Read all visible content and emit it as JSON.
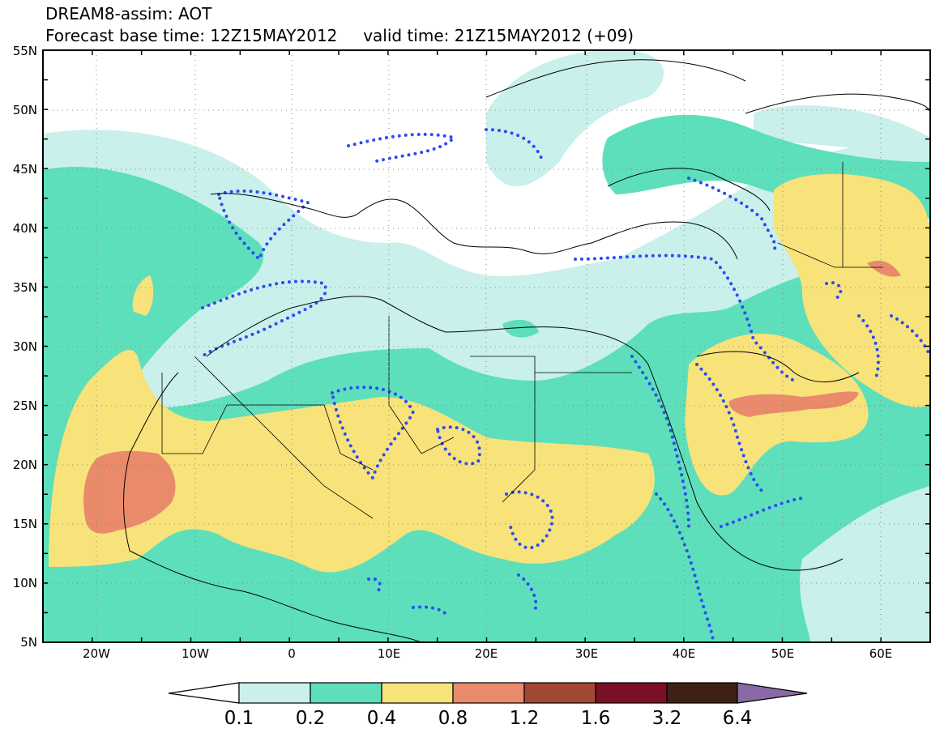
{
  "title": {
    "line1": "DREAM8-assim: AOT",
    "line2": "Forecast base time: 12Z15MAY2012     valid time: 21Z15MAY2012 (+09)"
  },
  "map": {
    "lon_range": [
      -25,
      65
    ],
    "lat_range": [
      5,
      55
    ],
    "lon_ticks": [
      {
        "value": -20,
        "label": "20W"
      },
      {
        "value": -10,
        "label": "10W"
      },
      {
        "value": 0,
        "label": "0"
      },
      {
        "value": 10,
        "label": "10E"
      },
      {
        "value": 20,
        "label": "20E"
      },
      {
        "value": 30,
        "label": "30E"
      },
      {
        "value": 40,
        "label": "40E"
      },
      {
        "value": 50,
        "label": "50E"
      },
      {
        "value": 60,
        "label": "60E"
      }
    ],
    "lat_ticks": [
      {
        "value": 55,
        "label": "55N"
      },
      {
        "value": 50,
        "label": "50N"
      },
      {
        "value": 45,
        "label": "45N"
      },
      {
        "value": 40,
        "label": "40N"
      },
      {
        "value": 35,
        "label": "35N"
      },
      {
        "value": 30,
        "label": "30N"
      },
      {
        "value": 25,
        "label": "25N"
      },
      {
        "value": 20,
        "label": "20N"
      },
      {
        "value": 15,
        "label": "15N"
      },
      {
        "value": 10,
        "label": "10N"
      },
      {
        "value": 5,
        "label": "5N"
      }
    ],
    "grid": "dotted",
    "overlay": "dotted blue contour"
  },
  "colorbar": {
    "labels": [
      "0.1",
      "0.2",
      "0.4",
      "0.8",
      "1.2",
      "1.6",
      "3.2",
      "6.4"
    ],
    "colors": [
      "#ffffff",
      "#c9f0eb",
      "#5ddfbb",
      "#f8e27a",
      "#e98a6a",
      "#a24935",
      "#7a0f25",
      "#3d2213",
      "#8a6aa6"
    ]
  }
}
